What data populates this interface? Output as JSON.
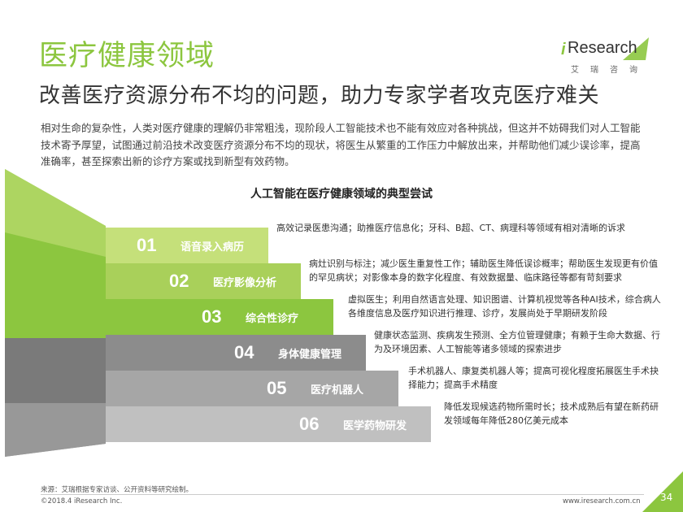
{
  "header": {
    "title": "医疗健康领域",
    "subtitle": "改善医疗资源分布不均的问题，助力专家学者攻克医疗难关",
    "intro": "相对生命的复杂性，人类对医疗健康的理解仍非常粗浅，现阶段人工智能技术也不能有效应对各种挑战，但这并不妨碍我们对人工智能技术寄予厚望，试图通过前沿技术改变医疗资源分布不均的现状，将医生从繁重的工作压力中解放出来，并帮助他们减少误诊率，提高准确率，甚至探索出新的诊疗方案或找到新型有效药物。"
  },
  "logo": {
    "i": "i",
    "word": "Research",
    "cn": "艾瑞咨询",
    "accent": "#8cc63f"
  },
  "chart": {
    "title": "人工智能在医疗健康领域的典型尝试",
    "steps": [
      {
        "num": "01",
        "label": "语音录入病历",
        "desc": "高效记录医患沟通；助推医疗信息化；牙科、B超、CT、病理科等领域有相对清晰的诉求",
        "color": "#c5e07a"
      },
      {
        "num": "02",
        "label": "医疗影像分析",
        "desc": "病灶识别与标注；减少医生重复性工作；辅助医生降低误诊概率；帮助医生发现更有价值的罕见病状；对影像本身的数字化程度、有效数据量、临床路径等都有苛刻要求",
        "color": "#a9d05a"
      },
      {
        "num": "03",
        "label": "综合性诊疗",
        "desc": "虚拟医生；利用自然语言处理、知识图谱、计算机视觉等各种AI技术，综合病人各维度信息及医疗知识进行推理、诊疗，发展尚处于早期研发阶段",
        "color": "#8cc63f"
      },
      {
        "num": "04",
        "label": "身体健康管理",
        "desc": "健康状态监测、疾病发生预测、全方位管理健康；有赖于生命大数据、行为及环境因素、人工智能等诸多领域的探索进步",
        "color": "#8c8c8c"
      },
      {
        "num": "05",
        "label": "医疗机器人",
        "desc": "手术机器人、康复类机器人等；提高可视化程度拓展医生手术抉择能力；提高手术精度",
        "color": "#a6a6a6"
      },
      {
        "num": "06",
        "label": "医学药物研发",
        "desc": "降低发现候选药物所需时长；技术成熟后有望在新药研发领域每年降低280亿美元成本",
        "color": "#c0c0c0"
      }
    ]
  },
  "footer": {
    "source": "来源：艾瑞根据专家访谈、公开资料等研究绘制。",
    "copyright": "©2018.4 iResearch Inc.",
    "url": "www.iresearch.com.cn",
    "page": "34"
  }
}
